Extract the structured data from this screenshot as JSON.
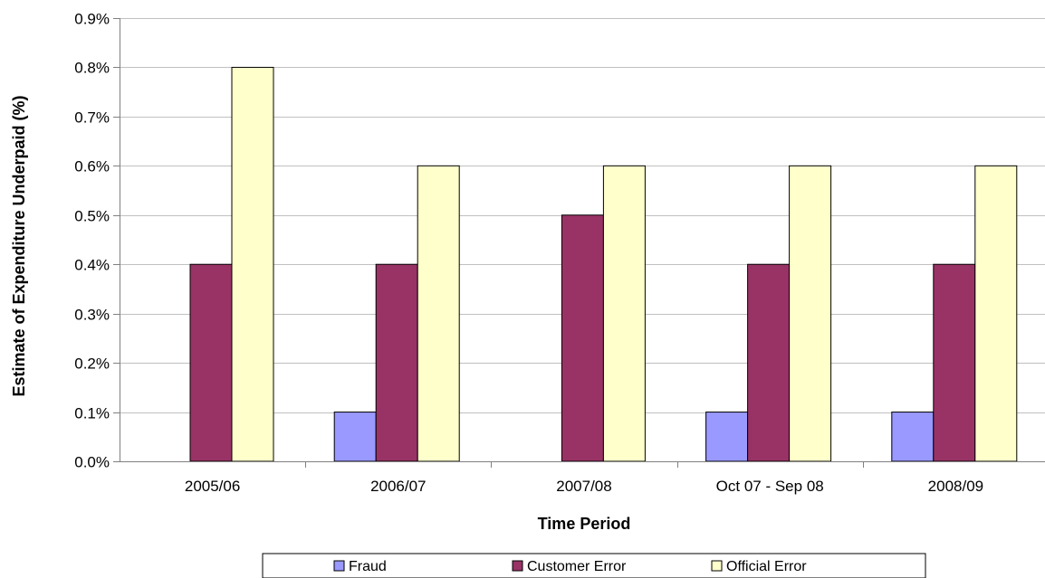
{
  "chart_data": {
    "type": "bar",
    "title": "",
    "xlabel": "Time Period",
    "ylabel": "Estimate of Expenditure Underpaid (%)",
    "categories": [
      "2005/06",
      "2006/07",
      "2007/08",
      "Oct 07 - Sep 08",
      "2008/09"
    ],
    "series": [
      {
        "name": "Fraud",
        "values": [
          0.0,
          0.1,
          0.0,
          0.1,
          0.1
        ],
        "color": "#9999ff"
      },
      {
        "name": "Customer Error",
        "values": [
          0.4,
          0.4,
          0.5,
          0.4,
          0.4
        ],
        "color": "#993366"
      },
      {
        "name": "Official Error",
        "values": [
          0.8,
          0.6,
          0.6,
          0.6,
          0.6
        ],
        "color": "#ffffcc"
      }
    ],
    "ylim": [
      0,
      0.9
    ],
    "yticks": [
      0.0,
      0.1,
      0.2,
      0.3,
      0.4,
      0.5,
      0.6,
      0.7,
      0.8,
      0.9
    ],
    "ytick_labels": [
      "0.0%",
      "0.1%",
      "0.2%",
      "0.3%",
      "0.4%",
      "0.5%",
      "0.6%",
      "0.7%",
      "0.8%",
      "0.9%"
    ],
    "grid": true,
    "legend_position": "bottom"
  }
}
